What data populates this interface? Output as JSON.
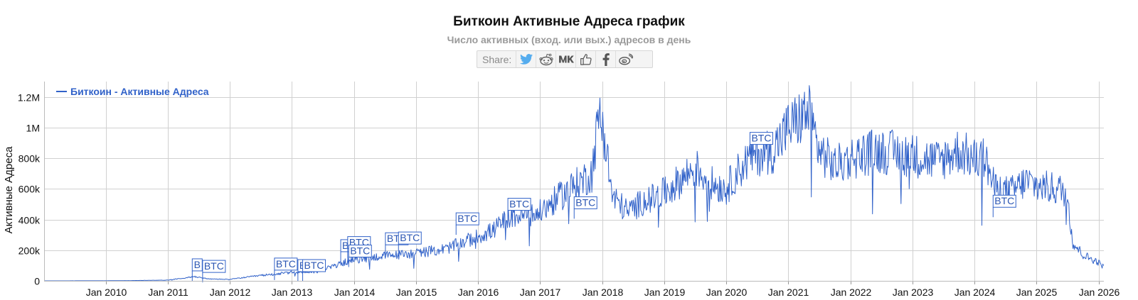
{
  "title": "Биткоин Активные Адреса график",
  "subtitle": "Число активных (вход. или вых.) адресов в день",
  "share": {
    "label": "Share:",
    "buttons": [
      "twitter-icon",
      "reddit-icon",
      "vk-icon",
      "like-icon",
      "facebook-icon",
      "weibo-icon"
    ]
  },
  "colors": {
    "series": "#3162c9",
    "grid": "#d0d0d0",
    "twitter": "#55acee",
    "text": "#111111"
  },
  "chart_data": {
    "type": "line",
    "title": "Биткоин Активные Адреса график",
    "subtitle": "Число активных (вход. или вых.) адресов в день",
    "ylabel": "Активные Адреса",
    "xlabel": "",
    "xlim": [
      "2009-01-03",
      "2026-02-01"
    ],
    "ylim": [
      0,
      1300000
    ],
    "yticks": [
      0,
      200000,
      400000,
      600000,
      800000,
      1000000,
      1200000
    ],
    "ytick_labels": [
      "0",
      "200k",
      "400k",
      "600k",
      "800k",
      "1M",
      "1.2M"
    ],
    "xticks": [
      "2010-01-01",
      "2011-01-01",
      "2012-01-01",
      "2013-01-01",
      "2014-01-01",
      "2015-01-01",
      "2016-01-01",
      "2017-01-01",
      "2018-01-01",
      "2019-01-01",
      "2020-01-01",
      "2021-01-01",
      "2022-01-01",
      "2023-01-01",
      "2024-01-01",
      "2025-01-01",
      "2026-01-01"
    ],
    "xtick_labels": [
      "Jan 2010",
      "Jan 2011",
      "Jan 2012",
      "Jan 2013",
      "Jan 2014",
      "Jan 2015",
      "Jan 2016",
      "Jan 2017",
      "Jan 2018",
      "Jan 2019",
      "Jan 2020",
      "Jan 2021",
      "Jan 2022",
      "Jan 2023",
      "Jan 2024",
      "Jan 2025",
      "Jan 2026"
    ],
    "grid": true,
    "legend": {
      "position": "top-left"
    },
    "series": [
      {
        "name": "Биткоин - Активные Адреса",
        "color": "#3162c9",
        "points": [
          [
            "2009-01-03",
            0
          ],
          [
            "2010-01-01",
            500
          ],
          [
            "2010-07-01",
            2000
          ],
          [
            "2011-01-01",
            5000
          ],
          [
            "2011-06-10",
            28000
          ],
          [
            "2011-09-01",
            12000
          ],
          [
            "2012-01-01",
            10000
          ],
          [
            "2012-07-01",
            35000
          ],
          [
            "2013-01-01",
            55000
          ],
          [
            "2013-06-01",
            60000
          ],
          [
            "2013-12-01",
            130000
          ],
          [
            "2014-06-01",
            160000
          ],
          [
            "2015-01-01",
            180000
          ],
          [
            "2015-07-01",
            210000
          ],
          [
            "2016-01-01",
            290000
          ],
          [
            "2016-04-01",
            330000
          ],
          [
            "2016-07-01",
            420000
          ],
          [
            "2016-12-01",
            430000
          ],
          [
            "2017-01-01",
            450000
          ],
          [
            "2017-06-01",
            580000
          ],
          [
            "2017-09-01",
            650000
          ],
          [
            "2017-11-01",
            700000
          ],
          [
            "2017-12-15",
            1100000
          ],
          [
            "2018-01-15",
            950000
          ],
          [
            "2018-03-01",
            550000
          ],
          [
            "2018-06-01",
            450000
          ],
          [
            "2018-09-01",
            520000
          ],
          [
            "2018-12-01",
            550000
          ],
          [
            "2019-04-01",
            650000
          ],
          [
            "2019-07-01",
            740000
          ],
          [
            "2019-10-01",
            640000
          ],
          [
            "2020-01-01",
            600000
          ],
          [
            "2020-03-01",
            700000
          ],
          [
            "2020-06-01",
            820000
          ],
          [
            "2020-10-01",
            850000
          ],
          [
            "2021-01-01",
            1000000
          ],
          [
            "2021-03-01",
            1050000
          ],
          [
            "2021-05-01",
            1100000
          ],
          [
            "2021-07-01",
            850000
          ],
          [
            "2021-10-01",
            750000
          ],
          [
            "2022-01-01",
            800000
          ],
          [
            "2022-06-01",
            850000
          ],
          [
            "2023-01-01",
            820000
          ],
          [
            "2023-06-01",
            780000
          ],
          [
            "2023-10-01",
            850000
          ],
          [
            "2024-01-01",
            790000
          ],
          [
            "2024-03-01",
            800000
          ],
          [
            "2024-05-01",
            600000
          ],
          [
            "2024-08-01",
            580000
          ],
          [
            "2024-11-01",
            650000
          ],
          [
            "2025-01-01",
            620000
          ],
          [
            "2025-05-01",
            600000
          ],
          [
            "2025-07-01",
            580000
          ],
          [
            "2025-08-01",
            250000
          ],
          [
            "2025-10-01",
            170000
          ],
          [
            "2026-01-01",
            120000
          ],
          [
            "2026-02-01",
            90000
          ]
        ]
      }
    ],
    "flags": [
      {
        "text": "B",
        "date": "2011-05-25",
        "value": 65000
      },
      {
        "text": "BTC",
        "date": "2011-07-25",
        "value": 55000
      },
      {
        "text": "BTC",
        "date": "2012-09-20",
        "value": 70000
      },
      {
        "text": "BTC",
        "date": "2013-02-05",
        "value": 60000
      },
      {
        "text": "BTC",
        "date": "2013-03-05",
        "value": 60000
      },
      {
        "text": "BTC",
        "date": "2013-10-15",
        "value": 190000
      },
      {
        "text": "BTC",
        "date": "2013-11-25",
        "value": 210000
      },
      {
        "text": "BTC",
        "date": "2013-12-01",
        "value": 155000
      },
      {
        "text": "BTC",
        "date": "2014-07-05",
        "value": 235000
      },
      {
        "text": "BTC",
        "date": "2014-09-20",
        "value": 240000
      },
      {
        "text": "BTC",
        "date": "2015-08-25",
        "value": 365000
      },
      {
        "text": "BTC",
        "date": "2016-06-25",
        "value": 460000
      },
      {
        "text": "BTC",
        "date": "2017-07-20",
        "value": 470000
      },
      {
        "text": "BTC",
        "date": "2020-05-20",
        "value": 890000
      },
      {
        "text": "BTC",
        "date": "2024-04-20",
        "value": 480000
      }
    ]
  }
}
